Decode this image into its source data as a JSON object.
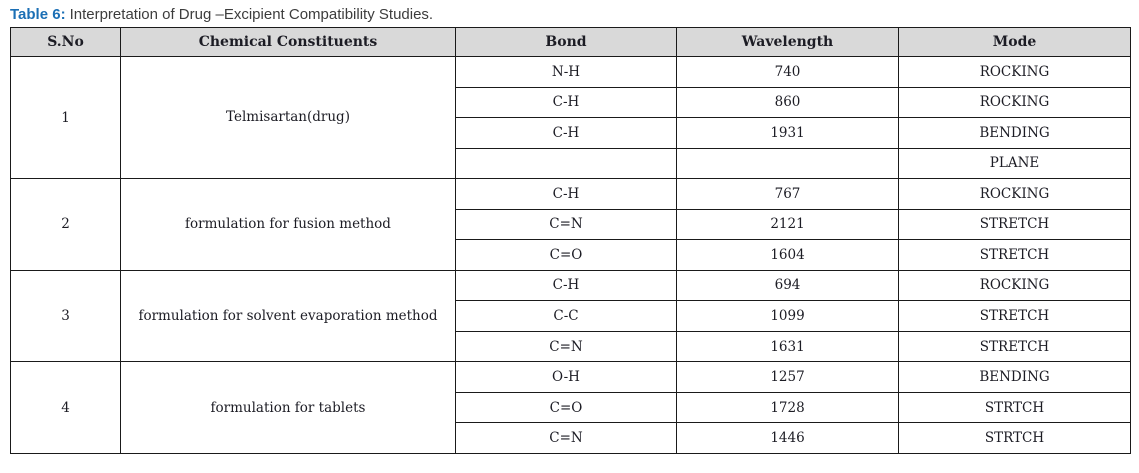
{
  "caption": {
    "label": "Table 6:",
    "text": "Interpretation of Drug –Excipient Compatibility Studies."
  },
  "table": {
    "headers": [
      "S.No",
      "Chemical Constituents",
      "Bond",
      "Wavelength",
      "Mode"
    ],
    "groups": [
      {
        "sno": "1",
        "constituent": "Telmisartan(drug)",
        "rows": [
          {
            "bond": "N-H",
            "wavelength": "740",
            "mode": "ROCKING"
          },
          {
            "bond": "C-H",
            "wavelength": "860",
            "mode": "ROCKING"
          },
          {
            "bond": "C-H",
            "wavelength": "1931",
            "mode": "BENDING"
          },
          {
            "bond": "",
            "wavelength": "",
            "mode": "PLANE"
          }
        ]
      },
      {
        "sno": "2",
        "constituent": "formulation for fusion method",
        "rows": [
          {
            "bond": "C-H",
            "wavelength": "767",
            "mode": "ROCKING"
          },
          {
            "bond": "C=N",
            "wavelength": "2121",
            "mode": "STRETCH"
          },
          {
            "bond": "C=O",
            "wavelength": "1604",
            "mode": "STRETCH"
          }
        ]
      },
      {
        "sno": "3",
        "constituent": "formulation for solvent evaporation method",
        "rows": [
          {
            "bond": "C-H",
            "wavelength": "694",
            "mode": "ROCKING"
          },
          {
            "bond": "C-C",
            "wavelength": "1099",
            "mode": "STRETCH"
          },
          {
            "bond": "C=N",
            "wavelength": "1631",
            "mode": "STRETCH"
          }
        ]
      },
      {
        "sno": "4",
        "constituent": "formulation for tablets",
        "rows": [
          {
            "bond": "O-H",
            "wavelength": "1257",
            "mode": "BENDING"
          },
          {
            "bond": "C=O",
            "wavelength": "1728",
            "mode": "STRTCH"
          },
          {
            "bond": "C=N",
            "wavelength": "1446",
            "mode": "STRTCH"
          }
        ]
      }
    ]
  },
  "colors": {
    "title_accent": "#1b6fb5",
    "caption_text": "#3d3d3d",
    "header_bg": "#d9d9d9",
    "border": "#1a1a1a",
    "cell_text": "#1c1c24"
  }
}
